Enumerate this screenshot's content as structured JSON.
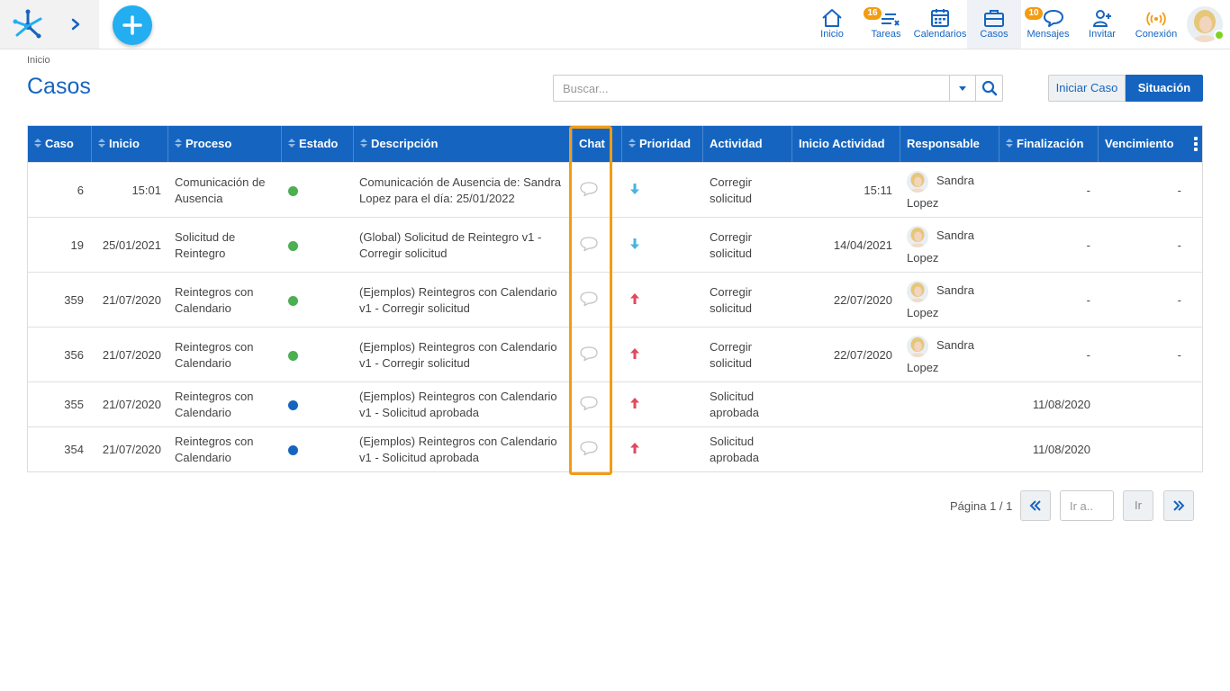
{
  "topbar": {
    "expand_icon": "chevron-right-icon",
    "add_icon": "plus-icon",
    "nav": [
      {
        "key": "inicio",
        "label": "Inicio",
        "icon": "home-icon"
      },
      {
        "key": "tareas",
        "label": "Tareas",
        "icon": "tasks-icon",
        "badge": "16"
      },
      {
        "key": "calendarios",
        "label": "Calendarios",
        "icon": "calendar-icon"
      },
      {
        "key": "casos",
        "label": "Casos",
        "icon": "briefcase-icon",
        "active": true
      },
      {
        "key": "mensajes",
        "label": "Mensajes",
        "icon": "chat-bubble-icon",
        "badge": "10"
      },
      {
        "key": "invitar",
        "label": "Invitar",
        "icon": "add-user-icon"
      },
      {
        "key": "conexion",
        "label": "Conexión",
        "icon": "signal-icon"
      }
    ]
  },
  "breadcrumb": "Inicio",
  "page_title": "Casos",
  "search": {
    "placeholder": "Buscar...",
    "value": ""
  },
  "buttons": {
    "iniciar_caso": "Iniciar Caso",
    "situacion": "Situación"
  },
  "table": {
    "columns": [
      "Caso",
      "Inicio",
      "Proceso",
      "Estado",
      "Descripción",
      "Chat",
      "Prioridad",
      "Actividad",
      "Inicio Actividad",
      "Responsable",
      "Finalización",
      "Vencimiento"
    ],
    "rows": [
      {
        "caso": "6",
        "inicio": "15:01",
        "proceso": "Comunicación de Ausencia",
        "estado": "green",
        "descripcion": "Comunicación de Ausencia de: Sandra Lopez para el día: 25/01/2022",
        "prioridad": "low",
        "actividad": "Corregir solicitud",
        "inicio_actividad": "15:11",
        "responsable": "Sandra Lopez",
        "finalizacion": "-",
        "vencimiento": "-"
      },
      {
        "caso": "19",
        "inicio": "25/01/2021",
        "proceso": "Solicitud de Reintegro",
        "estado": "green",
        "descripcion": "(Global) Solicitud de Reintegro v1 - Corregir solicitud",
        "prioridad": "low",
        "actividad": "Corregir solicitud",
        "inicio_actividad": "14/04/2021",
        "responsable": "Sandra Lopez",
        "finalizacion": "-",
        "vencimiento": "-"
      },
      {
        "caso": "359",
        "inicio": "21/07/2020",
        "proceso": "Reintegros con Calendario",
        "estado": "green",
        "descripcion": "(Ejemplos) Reintegros con Calendario v1 - Corregir solicitud",
        "prioridad": "high",
        "actividad": "Corregir solicitud",
        "inicio_actividad": "22/07/2020",
        "responsable": "Sandra Lopez",
        "finalizacion": "-",
        "vencimiento": "-"
      },
      {
        "caso": "356",
        "inicio": "21/07/2020",
        "proceso": "Reintegros con Calendario",
        "estado": "green",
        "descripcion": "(Ejemplos) Reintegros con Calendario v1 - Corregir solicitud",
        "prioridad": "high",
        "actividad": "Corregir solicitud",
        "inicio_actividad": "22/07/2020",
        "responsable": "Sandra Lopez",
        "finalizacion": "-",
        "vencimiento": "-"
      },
      {
        "caso": "355",
        "inicio": "21/07/2020",
        "proceso": "Reintegros con Calendario",
        "estado": "blue",
        "descripcion": "(Ejemplos) Reintegros con Calendario v1 - Solicitud aprobada",
        "prioridad": "high",
        "actividad": "Solicitud aprobada",
        "inicio_actividad": "",
        "responsable": "",
        "finalizacion": "11/08/2020",
        "vencimiento": ""
      },
      {
        "caso": "354",
        "inicio": "21/07/2020",
        "proceso": "Reintegros con Calendario",
        "estado": "blue",
        "descripcion": "(Ejemplos) Reintegros con Calendario v1 - Solicitud aprobada",
        "prioridad": "high",
        "actividad": "Solicitud aprobada",
        "inicio_actividad": "",
        "responsable": "",
        "finalizacion": "11/08/2020",
        "vencimiento": ""
      }
    ]
  },
  "pagination": {
    "info": "Página 1 / 1",
    "goto_placeholder": "Ir a..",
    "go_label": "Ir",
    "prev_icon": "double-chevron-left-icon",
    "next_icon": "double-chevron-right-icon"
  },
  "colors": {
    "primary": "#1565c0",
    "accent": "#22aef0",
    "badge": "#f39c12",
    "status_green": "#4caf50",
    "status_blue": "#1565c0",
    "prio_low": "#4ab3e0",
    "prio_high": "#e04a5f",
    "highlight": "#f39c12"
  }
}
